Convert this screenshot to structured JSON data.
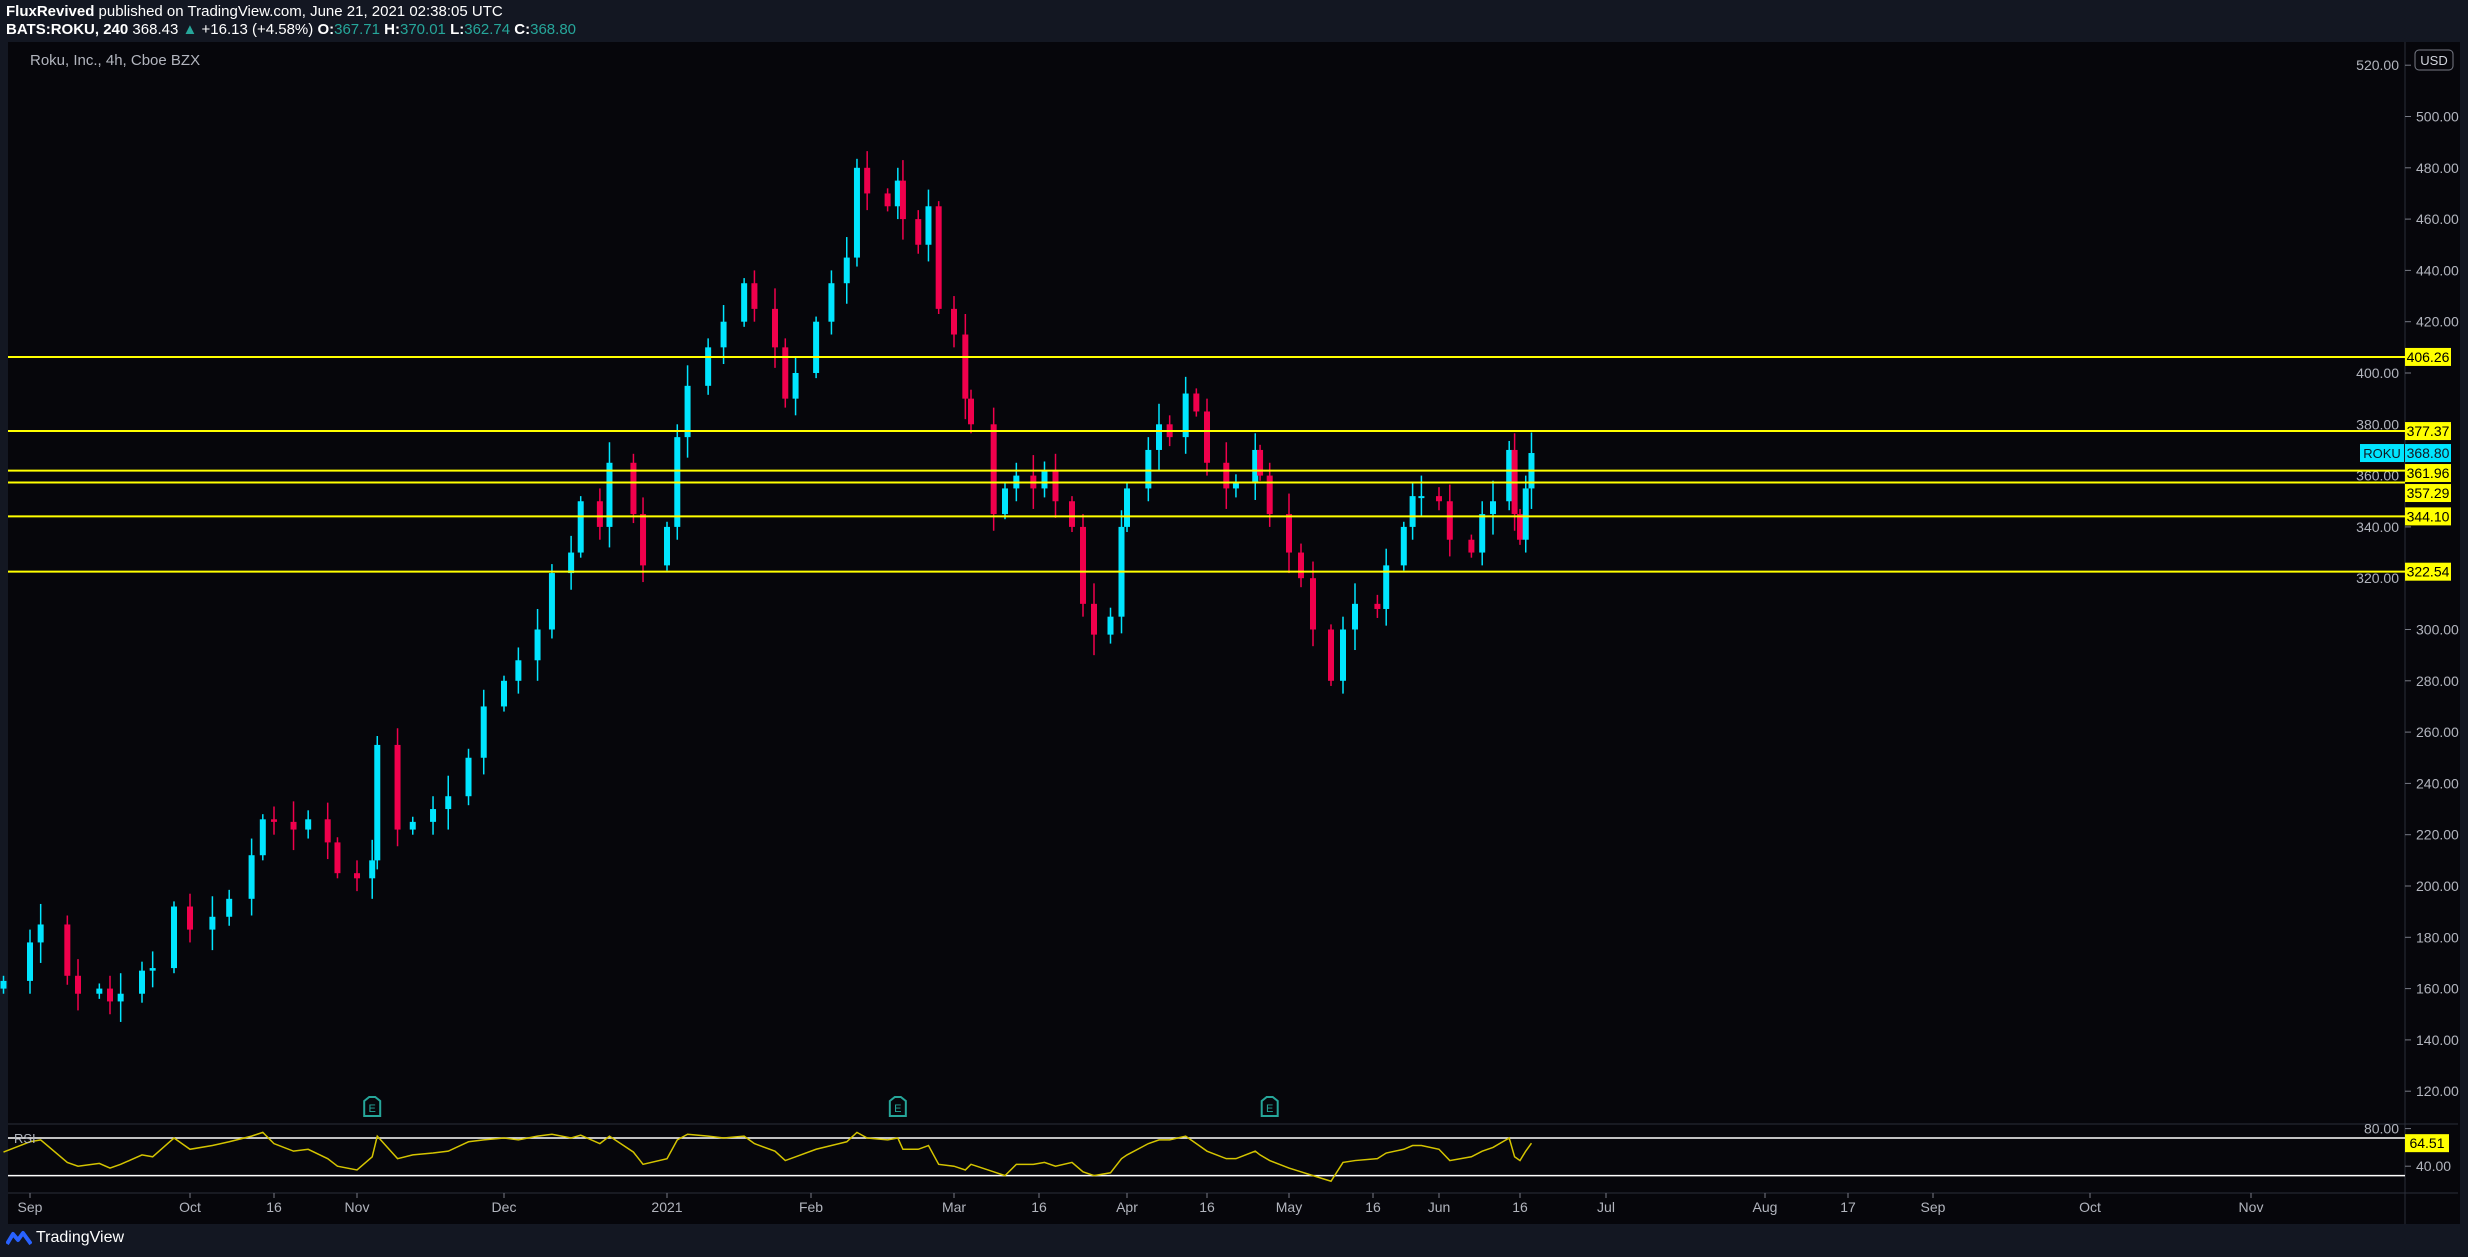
{
  "header": {
    "author": "FluxRevived",
    "published": "published on TradingView.com, June 21, 2021 02:38:05 UTC",
    "symbol": "BATS:ROKU, 240",
    "last": "368.43",
    "change": "+16.13 (+4.58%)",
    "o_label": "O:",
    "o": "367.71",
    "h_label": "H:",
    "h": "370.01",
    "l_label": "L:",
    "l": "362.74",
    "c_label": "C:",
    "c": "368.80"
  },
  "chart_title": "Roku, Inc., 4h, Cboe BZX",
  "currency_button": "USD",
  "rsi_label": "RSI",
  "earnings_marker": "E",
  "footer": {
    "brand": "TradingView"
  },
  "colors": {
    "up": "#00e5ff",
    "down": "#f0004c",
    "levels": "#ffff00",
    "rsi": "#d4c400",
    "background": "#06060b"
  },
  "chart_data": {
    "type": "candlestick",
    "y_ticks": [
      "520.00",
      "500.00",
      "480.00",
      "460.00",
      "440.00",
      "420.00",
      "400.00",
      "380.00",
      "360.00",
      "340.00",
      "320.00",
      "300.00",
      "280.00",
      "260.00",
      "240.00",
      "220.00",
      "200.00",
      "180.00",
      "160.00",
      "140.00",
      "120.00"
    ],
    "y_tick_values": [
      520,
      500,
      480,
      460,
      440,
      420,
      400,
      380,
      360,
      340,
      320,
      300,
      280,
      260,
      240,
      220,
      200,
      180,
      160,
      140,
      120
    ],
    "x_ticks": [
      {
        "label": "Sep",
        "date": "2020-09-01"
      },
      {
        "label": "Oct",
        "date": "2020-10-01"
      },
      {
        "label": "16",
        "date": "2020-10-16"
      },
      {
        "label": "Nov",
        "date": "2020-11-02"
      },
      {
        "label": "Dec",
        "date": "2020-12-01"
      },
      {
        "label": "2021",
        "date": "2021-01-04"
      },
      {
        "label": "Feb",
        "date": "2021-02-01"
      },
      {
        "label": "Mar",
        "date": "2021-03-01"
      },
      {
        "label": "16",
        "date": "2021-03-16"
      },
      {
        "label": "Apr",
        "date": "2021-04-01"
      },
      {
        "label": "16",
        "date": "2021-04-16"
      },
      {
        "label": "May",
        "date": "2021-05-03"
      },
      {
        "label": "16",
        "date": "2021-05-17"
      },
      {
        "label": "Jun",
        "date": "2021-06-01"
      },
      {
        "label": "16",
        "date": "2021-06-16"
      },
      {
        "label": "Jul",
        "date": "2021-07-01"
      },
      {
        "label": "Aug",
        "date": "2021-08-02"
      },
      {
        "label": "17",
        "date": "2021-08-17"
      },
      {
        "label": "Sep",
        "date": "2021-09-01"
      },
      {
        "label": "Oct",
        "date": "2021-10-01"
      },
      {
        "label": "Nov",
        "date": "2021-11-01"
      }
    ],
    "levels": [
      "406.26",
      "377.37",
      "361.96",
      "357.29",
      "344.10",
      "322.54"
    ],
    "last_price": {
      "symbol": "ROKU",
      "value": "368.80"
    },
    "earnings_dates": [
      "2020-11-05",
      "2021-02-18",
      "2021-04-29"
    ],
    "rsi": {
      "upper": 70,
      "lower": 30,
      "axis_labels": [
        "80.00",
        "40.00"
      ],
      "axis_values": [
        80,
        40
      ],
      "last": "64.51"
    },
    "series": [
      [
        "2020-08-27",
        163,
        55
      ],
      [
        "2020-09-01",
        178,
        66
      ],
      [
        "2020-09-03",
        185,
        68
      ],
      [
        "2020-09-08",
        165,
        44
      ],
      [
        "2020-09-10",
        158,
        40
      ],
      [
        "2020-09-14",
        160,
        43
      ],
      [
        "2020-09-16",
        155,
        38
      ],
      [
        "2020-09-18",
        158,
        42
      ],
      [
        "2020-09-22",
        167,
        52
      ],
      [
        "2020-09-24",
        168,
        50
      ],
      [
        "2020-09-28",
        192,
        70
      ],
      [
        "2020-10-01",
        183,
        58
      ],
      [
        "2020-10-05",
        188,
        62
      ],
      [
        "2020-10-08",
        195,
        66
      ],
      [
        "2020-10-12",
        212,
        72
      ],
      [
        "2020-10-14",
        226,
        76
      ],
      [
        "2020-10-16",
        225,
        64
      ],
      [
        "2020-10-20",
        222,
        56
      ],
      [
        "2020-10-23",
        226,
        58
      ],
      [
        "2020-10-27",
        217,
        48
      ],
      [
        "2020-10-29",
        205,
        40
      ],
      [
        "2020-11-02",
        203,
        36
      ],
      [
        "2020-11-05",
        210,
        50
      ],
      [
        "2020-11-06",
        255,
        72
      ],
      [
        "2020-11-10",
        222,
        48
      ],
      [
        "2020-11-13",
        225,
        52
      ],
      [
        "2020-11-17",
        230,
        54
      ],
      [
        "2020-11-20",
        235,
        56
      ],
      [
        "2020-11-24",
        250,
        66
      ],
      [
        "2020-11-27",
        270,
        68
      ],
      [
        "2020-12-01",
        280,
        70
      ],
      [
        "2020-12-04",
        288,
        68
      ],
      [
        "2020-12-08",
        300,
        72
      ],
      [
        "2020-12-11",
        322,
        74
      ],
      [
        "2020-12-15",
        330,
        70
      ],
      [
        "2020-12-17",
        350,
        73
      ],
      [
        "2020-12-21",
        340,
        64
      ],
      [
        "2020-12-23",
        365,
        72
      ],
      [
        "2020-12-28",
        345,
        55
      ],
      [
        "2020-12-30",
        325,
        42
      ],
      [
        "2021-01-04",
        340,
        48
      ],
      [
        "2021-01-06",
        375,
        68
      ],
      [
        "2021-01-08",
        395,
        74
      ],
      [
        "2021-01-12",
        410,
        72
      ],
      [
        "2021-01-15",
        420,
        70
      ],
      [
        "2021-01-19",
        435,
        72
      ],
      [
        "2021-01-21",
        425,
        64
      ],
      [
        "2021-01-25",
        410,
        56
      ],
      [
        "2021-01-27",
        390,
        46
      ],
      [
        "2021-01-29",
        400,
        50
      ],
      [
        "2021-02-02",
        420,
        58
      ],
      [
        "2021-02-05",
        435,
        62
      ],
      [
        "2021-02-08",
        445,
        66
      ],
      [
        "2021-02-10",
        480,
        76
      ],
      [
        "2021-02-12",
        470,
        70
      ],
      [
        "2021-02-16",
        465,
        68
      ],
      [
        "2021-02-18",
        475,
        70
      ],
      [
        "2021-02-19",
        460,
        58
      ],
      [
        "2021-02-22",
        450,
        58
      ],
      [
        "2021-02-24",
        465,
        62
      ],
      [
        "2021-02-26",
        425,
        42
      ],
      [
        "2021-03-01",
        415,
        40
      ],
      [
        "2021-03-03",
        390,
        36
      ],
      [
        "2021-03-04",
        380,
        42
      ],
      [
        "2021-03-08",
        345,
        34
      ],
      [
        "2021-03-10",
        355,
        30
      ],
      [
        "2021-03-12",
        360,
        42
      ],
      [
        "2021-03-15",
        355,
        42
      ],
      [
        "2021-03-17",
        362,
        44
      ],
      [
        "2021-03-19",
        350,
        40
      ],
      [
        "2021-03-22",
        340,
        44
      ],
      [
        "2021-03-24",
        310,
        34
      ],
      [
        "2021-03-26",
        298,
        30
      ],
      [
        "2021-03-29",
        305,
        33
      ],
      [
        "2021-03-31",
        340,
        48
      ],
      [
        "2021-04-01",
        355,
        52
      ],
      [
        "2021-04-05",
        370,
        64
      ],
      [
        "2021-04-07",
        380,
        68
      ],
      [
        "2021-04-09",
        375,
        68
      ],
      [
        "2021-04-12",
        392,
        72
      ],
      [
        "2021-04-14",
        385,
        64
      ],
      [
        "2021-04-16",
        365,
        56
      ],
      [
        "2021-04-20",
        355,
        48
      ],
      [
        "2021-04-22",
        357,
        48
      ],
      [
        "2021-04-26",
        370,
        56
      ],
      [
        "2021-04-27",
        360,
        52
      ],
      [
        "2021-04-29",
        345,
        46
      ],
      [
        "2021-05-03",
        330,
        38
      ],
      [
        "2021-05-05",
        320,
        34
      ],
      [
        "2021-05-07",
        300,
        30
      ],
      [
        "2021-05-10",
        280,
        24
      ],
      [
        "2021-05-12",
        300,
        44
      ],
      [
        "2021-05-14",
        310,
        46
      ],
      [
        "2021-05-18",
        308,
        48
      ],
      [
        "2021-05-20",
        325,
        54
      ],
      [
        "2021-05-24",
        340,
        58
      ],
      [
        "2021-05-26",
        352,
        62
      ],
      [
        "2021-05-28",
        352,
        62
      ],
      [
        "2021-06-01",
        350,
        58
      ],
      [
        "2021-06-03",
        335,
        46
      ],
      [
        "2021-06-07",
        330,
        50
      ],
      [
        "2021-06-09",
        345,
        56
      ],
      [
        "2021-06-11",
        350,
        60
      ],
      [
        "2021-06-14",
        370,
        70
      ],
      [
        "2021-06-15",
        345,
        50
      ],
      [
        "2021-06-16",
        335,
        46
      ],
      [
        "2021-06-17",
        355,
        56
      ],
      [
        "2021-06-18",
        368.8,
        64.51
      ]
    ]
  }
}
